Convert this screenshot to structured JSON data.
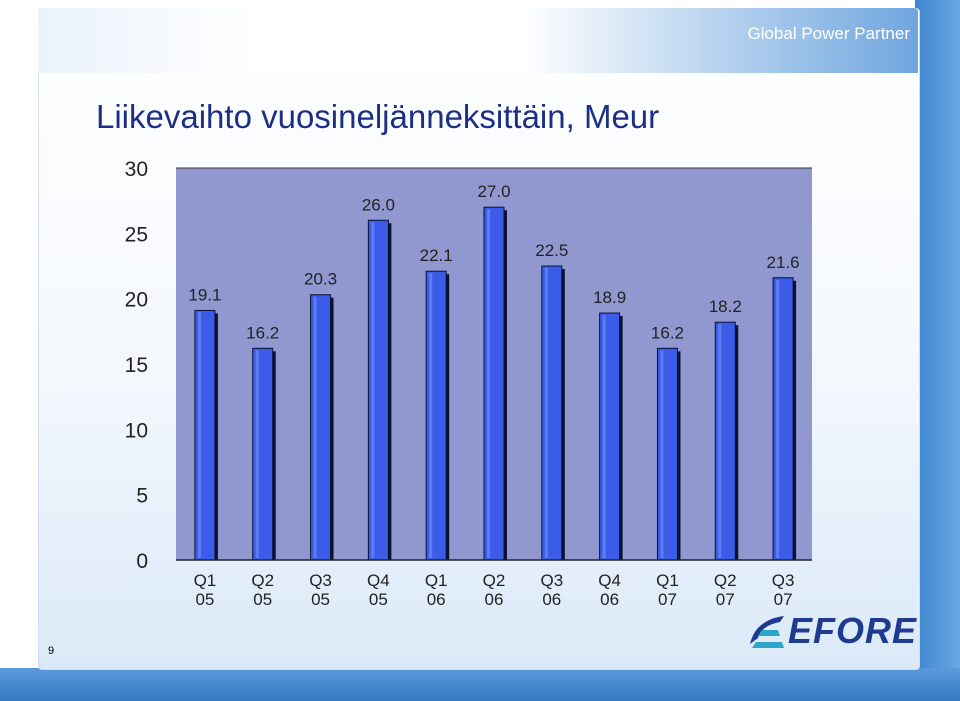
{
  "header": {
    "brand": "Global Power Partner"
  },
  "slide": {
    "title": "Liikevaihto vuosineljänneksittäin, Meur",
    "page_number": "9"
  },
  "logo": {
    "text": "EFORE",
    "icon": "efore-logo-icon"
  },
  "colors": {
    "bar": "#3b5ce8",
    "bar_shadow": "#0b1230",
    "plot_bg": "#9198cf",
    "title": "#1c2f86"
  },
  "chart_data": {
    "type": "bar",
    "title": "Liikevaihto vuosineljänneksittäin, Meur",
    "categories": [
      "Q1 05",
      "Q2 05",
      "Q3 05",
      "Q4 05",
      "Q1 06",
      "Q2 06",
      "Q3 06",
      "Q4 06",
      "Q1 07",
      "Q2 07",
      "Q3 07"
    ],
    "category_lines": [
      [
        "Q1",
        "05"
      ],
      [
        "Q2",
        "05"
      ],
      [
        "Q3",
        "05"
      ],
      [
        "Q4",
        "05"
      ],
      [
        "Q1",
        "06"
      ],
      [
        "Q2",
        "06"
      ],
      [
        "Q3",
        "06"
      ],
      [
        "Q4",
        "06"
      ],
      [
        "Q1",
        "07"
      ],
      [
        "Q2",
        "07"
      ],
      [
        "Q3",
        "07"
      ]
    ],
    "values": [
      19.1,
      16.2,
      20.3,
      26.0,
      22.1,
      27.0,
      22.5,
      18.9,
      16.2,
      18.2,
      21.6
    ],
    "value_labels": [
      "19.1",
      "16.2",
      "20.3",
      "26.0",
      "22.1",
      "27.0",
      "22.5",
      "18.9",
      "16.2",
      "18.2",
      "21.6"
    ],
    "yticks": [
      "0",
      "5",
      "10",
      "15",
      "20",
      "25",
      "30"
    ],
    "ylim": [
      0,
      30
    ],
    "grid": false,
    "legend": "none",
    "xlabel": "",
    "ylabel": ""
  }
}
